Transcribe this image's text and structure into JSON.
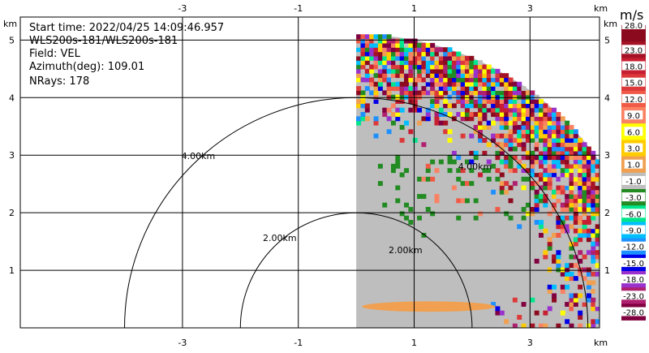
{
  "info": {
    "start_time": "Start time: 2022/04/25 14:09:46.957",
    "instrument": "WLS200s-181/WLS200s-181",
    "field": "Field: VEL",
    "azimuth": "Azimuth(deg): 109.01",
    "nrays": "NRays: 178"
  },
  "colorbar": {
    "unit": "m/s",
    "tick_labels": [
      "28.0",
      "23.0",
      "18.0",
      "15.0",
      "12.0",
      "9.0",
      "6.0",
      "3.0",
      "1.0",
      "-1.0",
      "-3.0",
      "-6.0",
      "-9.0",
      "-12.0",
      "-15.0",
      "-18.0",
      "-23.0",
      "-28.0"
    ],
    "colors": [
      "#8c0a1e",
      "#a51225",
      "#c81e32",
      "#dc3a3a",
      "#f05a46",
      "#fa8264",
      "#ffff00",
      "#ffcc00",
      "#f0a050",
      "#bebebe",
      "#228b22",
      "#00e68c",
      "#00bfff",
      "#1e90ff",
      "#0000e6",
      "#9932cc",
      "#b02070",
      "#800040"
    ]
  },
  "chart_data": {
    "type": "heatmap",
    "title": "",
    "x_unit_label": "km",
    "y_unit_label": "km",
    "xlim": [
      -5.8,
      4.2
    ],
    "ylim": [
      0,
      5.4
    ],
    "x_ticks": [
      -3,
      -1,
      1,
      3
    ],
    "y_ticks": [
      1,
      2,
      3,
      4,
      5
    ],
    "grid": true,
    "range_rings": [
      {
        "radius_km": 2.0,
        "label": "2.00km"
      },
      {
        "radius_km": 4.0,
        "label": "4.00km"
      }
    ],
    "extra_labels": [
      "2.00km",
      "4.00km"
    ],
    "sector": {
      "x_start_km": 0.0,
      "max_range_km": 5.1
    },
    "field": "VEL",
    "value_range": [
      -28,
      28
    ],
    "notable_features": [
      {
        "desc": "near-zero velocity (grey) fills most of the sector"
      },
      {
        "desc": "orange band ~1 m/s near y 0.35 km, x 0.2 to 2.4 km"
      },
      {
        "desc": "noisy multicolour returns beyond ~4 km range"
      },
      {
        "desc": "scattered green (-1 to -3 m/s) returns around y 2-3 km"
      }
    ]
  }
}
